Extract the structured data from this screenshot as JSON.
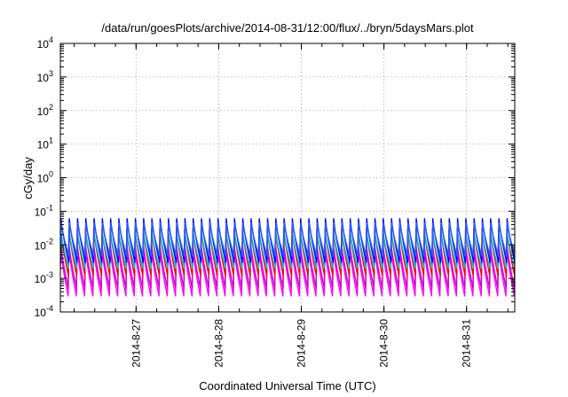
{
  "chart_data": {
    "type": "line",
    "title": "/data/run/goesPlots/archive/2014-08-31/12:00/flux/../bryn/5daysMars.plot",
    "xlabel": "Coordinated Universal Time (UTC)",
    "ylabel": "cGy/day",
    "yscale": "log",
    "ylim": [
      0.0001,
      10000
    ],
    "xlim": [
      "2014-08-26 02:00",
      "2014-08-31 14:00"
    ],
    "x_ticks": [
      "2014-8-27",
      "2014-8-28",
      "2014-8-29",
      "2014-8-30",
      "2014-8-31"
    ],
    "y_ticks": [
      {
        "base": "10",
        "exp": "-4"
      },
      {
        "base": "10",
        "exp": "-3"
      },
      {
        "base": "10",
        "exp": "-2"
      },
      {
        "base": "10",
        "exp": "-1"
      },
      {
        "base": "10",
        "exp": "0"
      },
      {
        "base": "10",
        "exp": "1"
      },
      {
        "base": "10",
        "exp": "2"
      },
      {
        "base": "10",
        "exp": "3"
      },
      {
        "base": "10",
        "exp": "4"
      }
    ],
    "grid": true,
    "cycles_per_day": 10,
    "series": [
      {
        "color": "#ff00ff",
        "peak": 0.009,
        "trough": 0.0003
      },
      {
        "color": "#cc00cc",
        "peak": 0.012,
        "trough": 0.0005
      },
      {
        "color": "#ff0000",
        "peak": 0.03,
        "trough": 0.0012
      },
      {
        "color": "#00bbbb",
        "peak": 0.025,
        "trough": 0.002
      },
      {
        "color": "#0000ff",
        "peak": 0.06,
        "trough": 0.003
      },
      {
        "color": "#2060ff",
        "peak": 0.045,
        "trough": 0.0045
      }
    ]
  }
}
